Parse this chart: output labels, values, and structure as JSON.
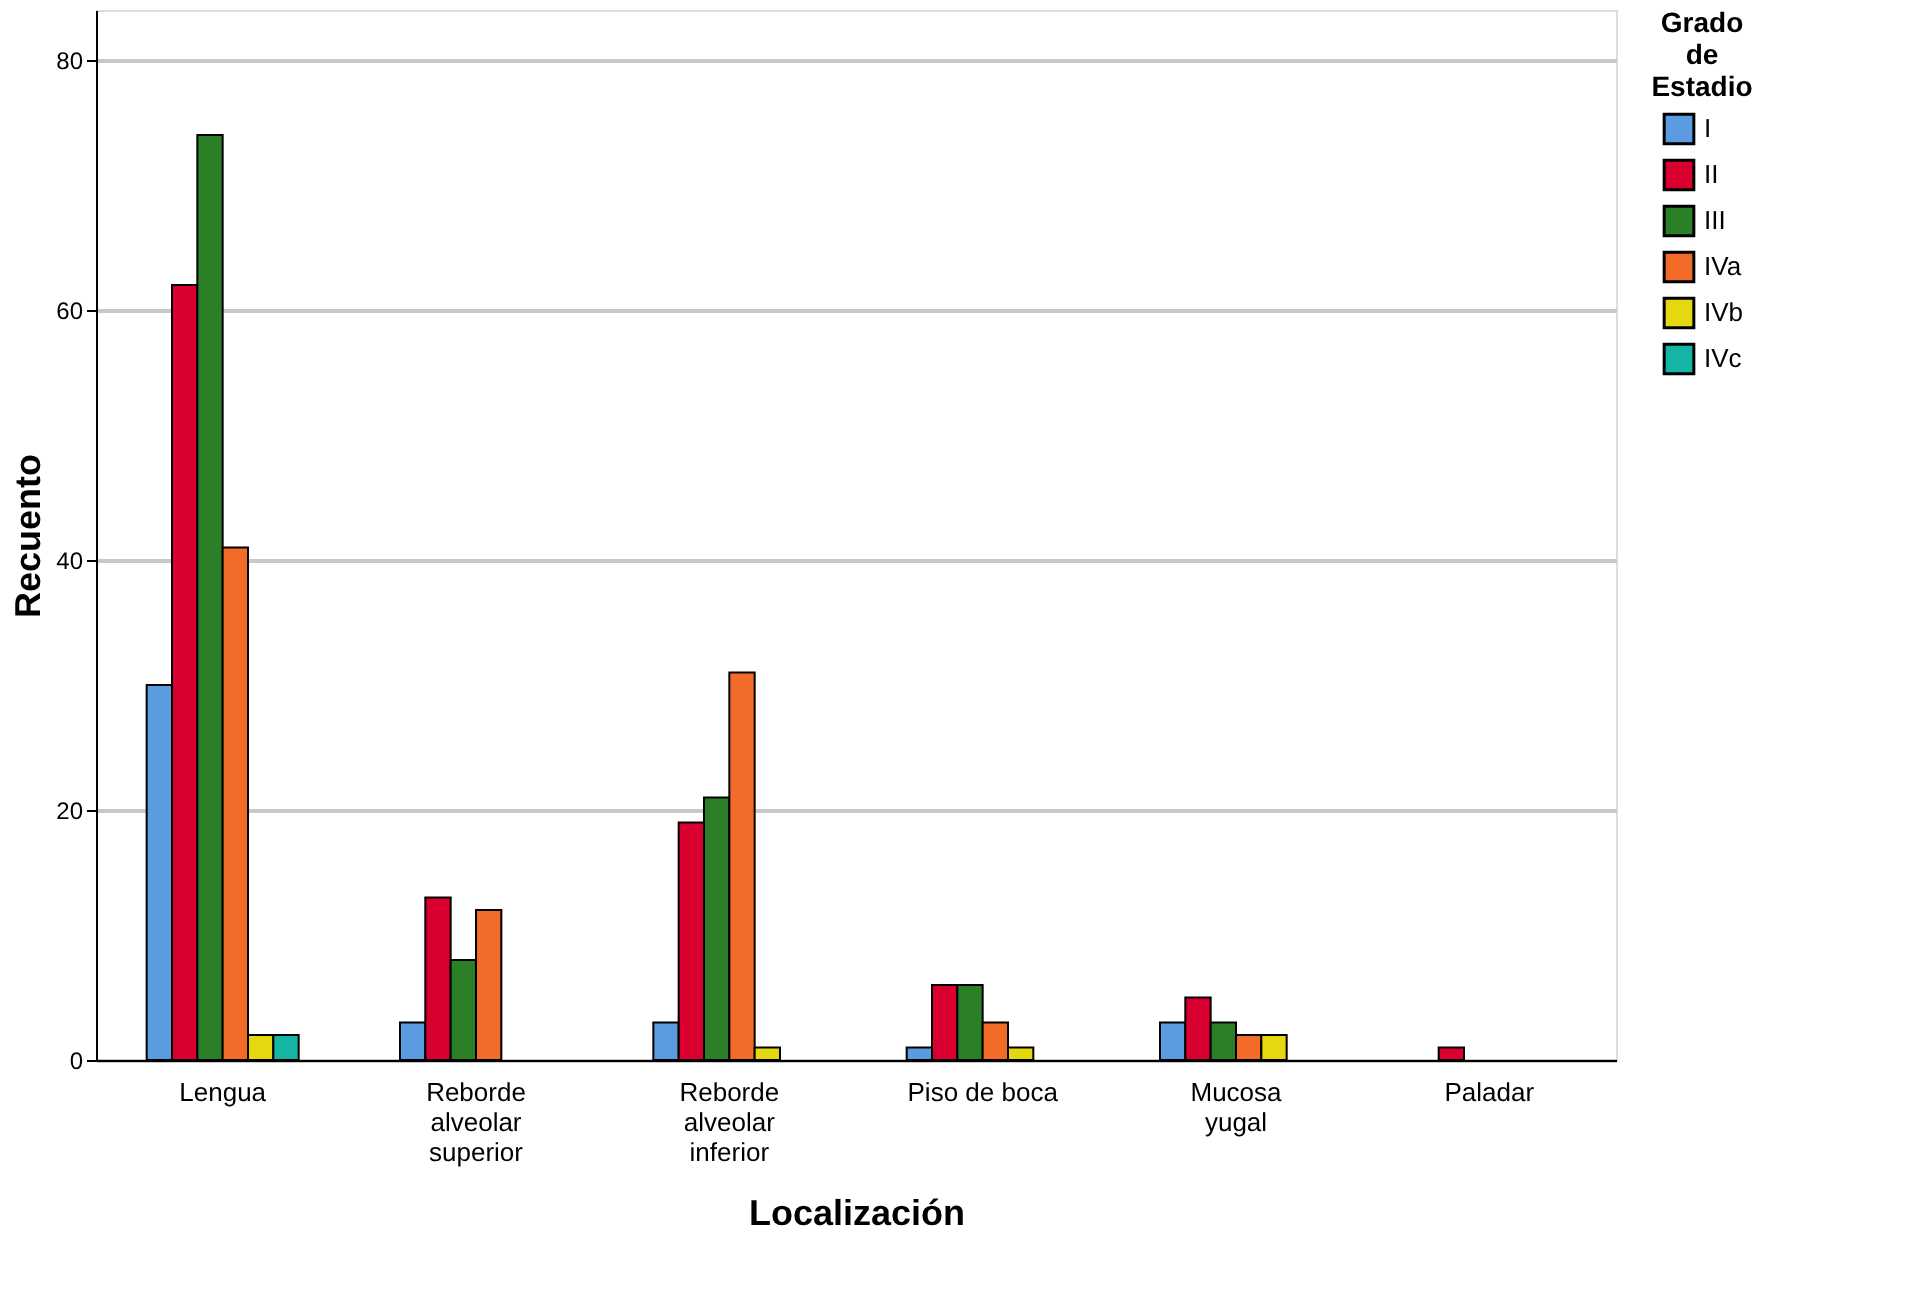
{
  "chart_data": {
    "type": "bar",
    "xlabel": "Localización",
    "ylabel": "Recuento",
    "legend_title": "Grado\nde\nEstadio",
    "categories": [
      "Lengua",
      "Reborde\nalveolar\nsuperior",
      "Reborde\nalveolar\ninferior",
      "Piso de boca",
      "Mucosa\nyugal",
      "Paladar"
    ],
    "series": [
      {
        "name": "I",
        "color": "#5b9bdf",
        "values": [
          30,
          3,
          3,
          1,
          3,
          0
        ]
      },
      {
        "name": "II",
        "color": "#d9002f",
        "values": [
          62,
          13,
          19,
          6,
          5,
          1
        ]
      },
      {
        "name": "III",
        "color": "#2b8027",
        "values": [
          74,
          8,
          21,
          6,
          3,
          0
        ]
      },
      {
        "name": "IVa",
        "color": "#f26b28",
        "values": [
          41,
          12,
          31,
          3,
          2,
          0
        ]
      },
      {
        "name": "IVb",
        "color": "#e5d810",
        "values": [
          2,
          0,
          1,
          1,
          2,
          0
        ]
      },
      {
        "name": "IVc",
        "color": "#14b5a5",
        "values": [
          2,
          0,
          0,
          0,
          0,
          0
        ]
      }
    ],
    "ylim": [
      0,
      84
    ],
    "yticks": [
      0,
      20,
      40,
      60,
      80
    ],
    "grid": "y",
    "legend": "top right"
  }
}
